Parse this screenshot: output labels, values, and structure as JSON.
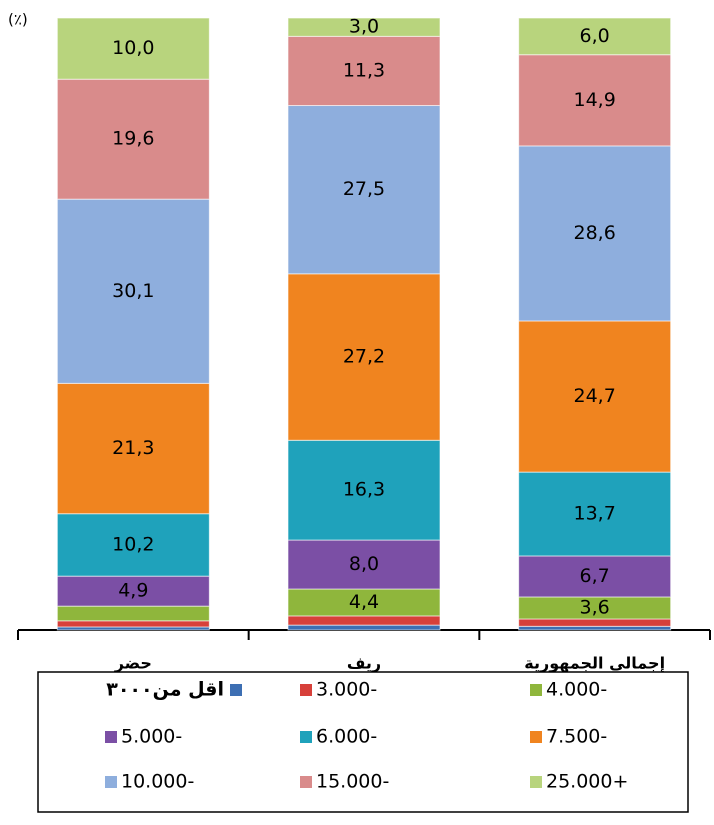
{
  "chart_data": {
    "type": "stacked_bar",
    "ylabel": "(٪)",
    "categories": [
      "حضر",
      "ريف",
      "إجمالى الجمهورية"
    ],
    "ylim": [
      0,
      100
    ],
    "series": [
      {
        "name": "اقل من٣٠٠٠",
        "color": "#3d6fb3",
        "values": [
          0.5,
          0.8,
          0.6
        ],
        "value_labels": [
          null,
          null,
          null
        ]
      },
      {
        "name": "3.000-",
        "color": "#d7403a",
        "values": [
          1.0,
          1.5,
          1.2
        ],
        "value_labels": [
          null,
          null,
          null
        ]
      },
      {
        "name": "4.000-",
        "color": "#8fb63c",
        "values": [
          2.4,
          4.4,
          3.6
        ],
        "value_labels": [
          null,
          "4,4",
          "3,6"
        ]
      },
      {
        "name": "5.000-",
        "color": "#7b4fa5",
        "values": [
          4.9,
          8.0,
          6.7
        ],
        "value_labels": [
          "4,9",
          "8,0",
          "6,7"
        ]
      },
      {
        "name": "6.000-",
        "color": "#1fa2bb",
        "values": [
          10.2,
          16.3,
          13.7
        ],
        "value_labels": [
          "10,2",
          "16,3",
          "13,7"
        ]
      },
      {
        "name": "7.500-",
        "color": "#f0841f",
        "values": [
          21.3,
          27.2,
          24.7
        ],
        "value_labels": [
          "21,3",
          "27,2",
          "24,7"
        ]
      },
      {
        "name": "10.000-",
        "color": "#8eaedd",
        "values": [
          30.1,
          27.5,
          28.6
        ],
        "value_labels": [
          "30,1",
          "27,5",
          "28,6"
        ]
      },
      {
        "name": "15.000-",
        "color": "#d98b8b",
        "values": [
          19.6,
          11.3,
          14.9
        ],
        "value_labels": [
          "19,6",
          "11,3",
          "14,9"
        ]
      },
      {
        "name": "25.000+",
        "color": "#b8d47d",
        "values": [
          10.0,
          3.0,
          6.0
        ],
        "value_labels": [
          "10,0",
          "3,0",
          "6,0"
        ]
      }
    ]
  }
}
